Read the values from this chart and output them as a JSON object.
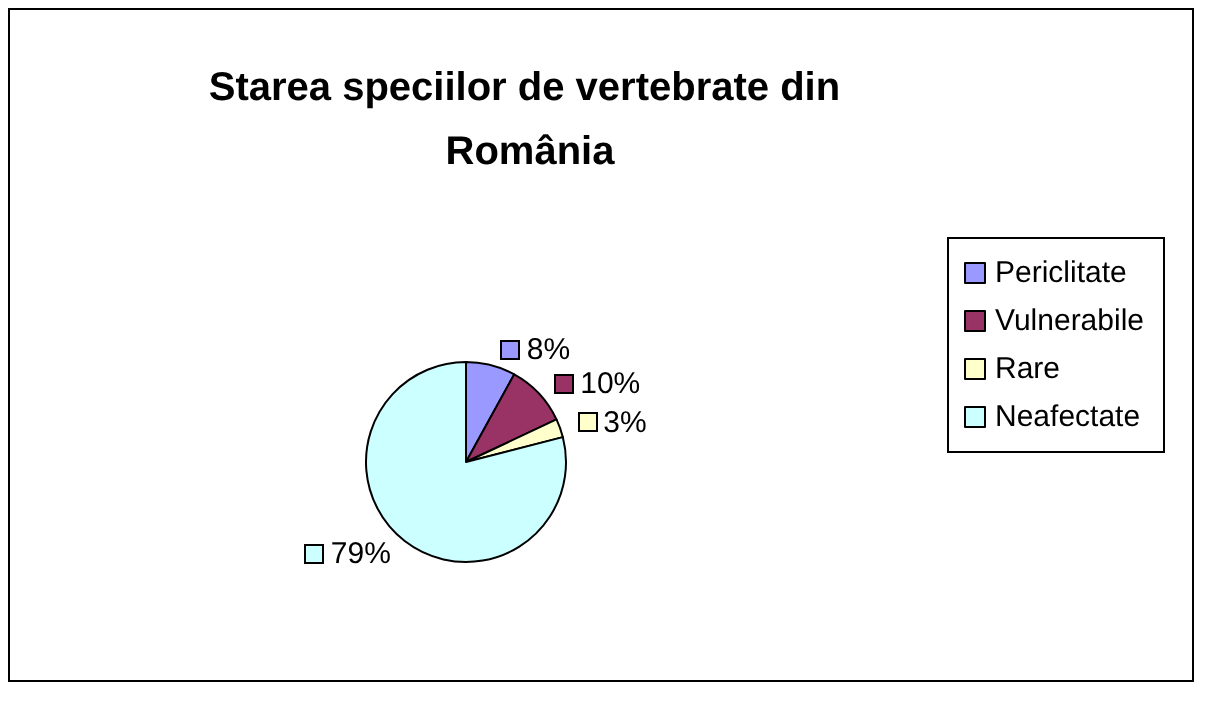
{
  "chart_data": {
    "type": "pie",
    "title": "Starea speciilor de vertebrate din România",
    "categories": [
      "Periclitate",
      "Vulnerabile",
      "Rare",
      "Neafectate"
    ],
    "values": [
      8,
      10,
      3,
      79
    ],
    "colors": [
      "#9999ff",
      "#993366",
      "#ffffcc",
      "#ccffff"
    ],
    "value_labels": [
      "8%",
      "10%",
      "3%",
      "79%"
    ],
    "legend": "right"
  }
}
